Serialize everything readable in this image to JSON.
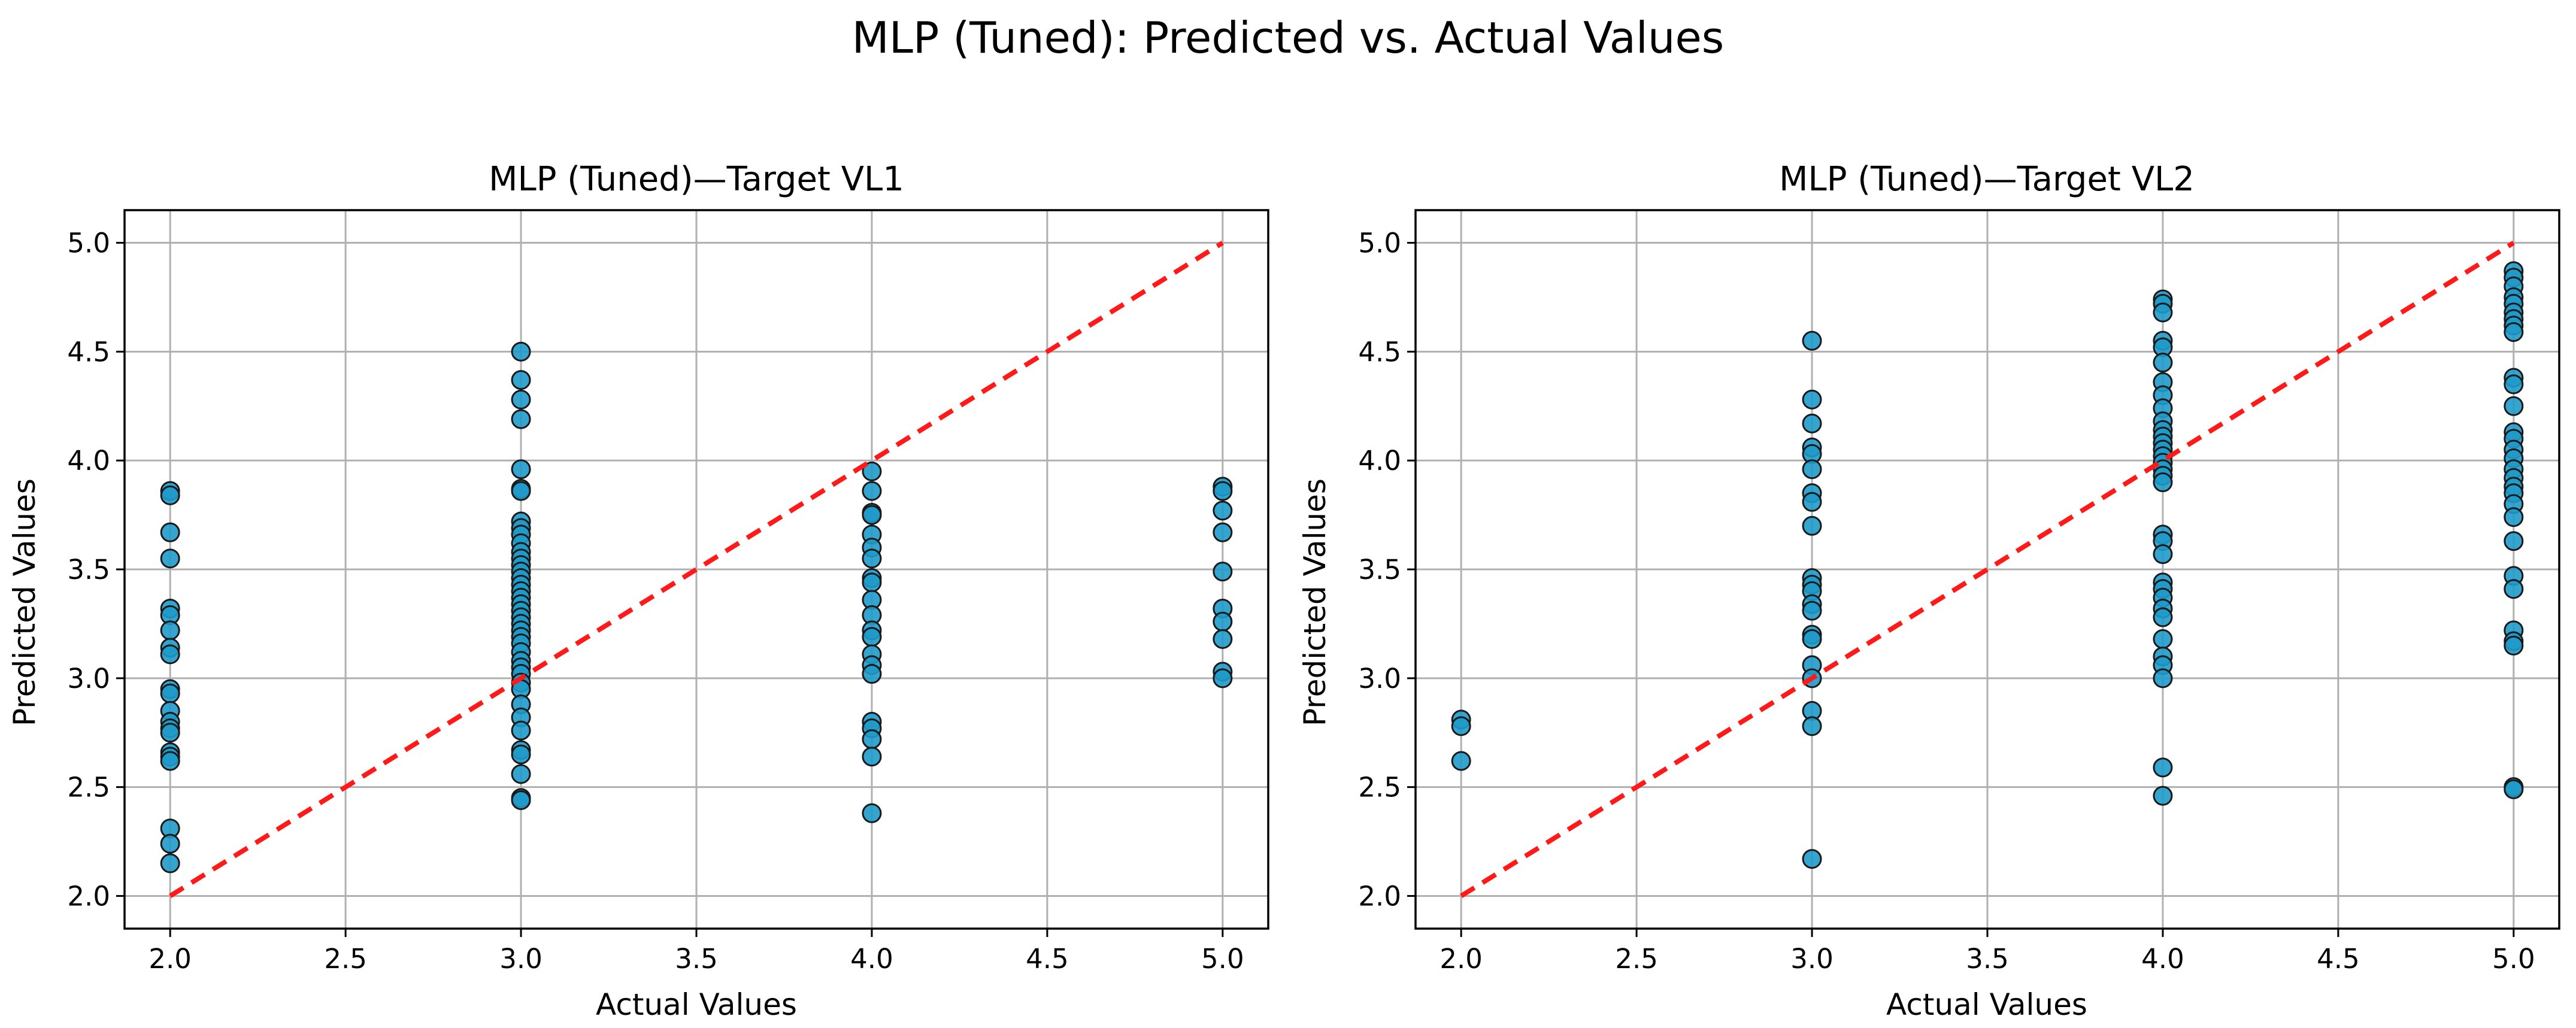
{
  "figure_title": "MLP (Tuned): Predicted vs. Actual Values",
  "colors": {
    "points": "#1f9ac9",
    "ideal_line": "#ff1a1a",
    "grid": "#b0b0b0"
  },
  "chart_data": [
    {
      "type": "scatter",
      "title": "MLP (Tuned)—Target VL1",
      "xlabel": "Actual Values",
      "ylabel": "Predicted Values",
      "xlim": [
        1.87,
        5.13
      ],
      "ylim": [
        1.85,
        5.15
      ],
      "xticks": [
        "2.0",
        "2.5",
        "3.0",
        "3.5",
        "4.0",
        "4.5",
        "5.0"
      ],
      "yticks": [
        "2.0",
        "2.5",
        "3.0",
        "3.5",
        "4.0",
        "4.5",
        "5.0"
      ],
      "grid": true,
      "ideal_line": {
        "from": [
          2.0,
          2.0
        ],
        "to": [
          5.0,
          5.0
        ],
        "style": "dashed"
      },
      "series": [
        {
          "x": 2.0,
          "y": [
            3.86,
            3.84,
            3.67,
            3.55,
            3.32,
            3.29,
            3.22,
            3.14,
            3.11,
            2.95,
            2.93,
            2.85,
            2.8,
            2.77,
            2.75,
            2.66,
            2.64,
            2.62,
            2.31,
            2.24,
            2.15
          ]
        },
        {
          "x": 3.0,
          "y": [
            4.5,
            4.37,
            4.28,
            4.19,
            3.96,
            3.87,
            3.86,
            3.72,
            3.69,
            3.66,
            3.62,
            3.58,
            3.55,
            3.52,
            3.49,
            3.46,
            3.43,
            3.4,
            3.37,
            3.34,
            3.31,
            3.28,
            3.25,
            3.22,
            3.19,
            3.16,
            3.12,
            3.08,
            3.05,
            3.02,
            2.98,
            2.95,
            2.88,
            2.82,
            2.76,
            2.67,
            2.65,
            2.56,
            2.45,
            2.44
          ]
        },
        {
          "x": 4.0,
          "y": [
            3.95,
            3.86,
            3.76,
            3.75,
            3.66,
            3.6,
            3.55,
            3.46,
            3.44,
            3.36,
            3.29,
            3.22,
            3.19,
            3.11,
            3.06,
            3.02,
            2.8,
            2.77,
            2.72,
            2.64,
            2.38
          ]
        },
        {
          "x": 5.0,
          "y": [
            3.88,
            3.86,
            3.77,
            3.67,
            3.49,
            3.32,
            3.26,
            3.18,
            3.03,
            3.0
          ]
        }
      ]
    },
    {
      "type": "scatter",
      "title": "MLP (Tuned)—Target VL2",
      "xlabel": "Actual Values",
      "ylabel": "Predicted Values",
      "xlim": [
        1.87,
        5.13
      ],
      "ylim": [
        1.85,
        5.15
      ],
      "xticks": [
        "2.0",
        "2.5",
        "3.0",
        "3.5",
        "4.0",
        "4.5",
        "5.0"
      ],
      "yticks": [
        "2.0",
        "2.5",
        "3.0",
        "3.5",
        "4.0",
        "4.5",
        "5.0"
      ],
      "grid": true,
      "ideal_line": {
        "from": [
          2.0,
          2.0
        ],
        "to": [
          5.0,
          5.0
        ],
        "style": "dashed"
      },
      "series": [
        {
          "x": 2.0,
          "y": [
            2.81,
            2.78,
            2.62
          ]
        },
        {
          "x": 3.0,
          "y": [
            4.55,
            4.28,
            4.17,
            4.06,
            4.03,
            3.96,
            3.85,
            3.81,
            3.7,
            3.46,
            3.43,
            3.4,
            3.34,
            3.31,
            3.2,
            3.18,
            3.06,
            3.0,
            2.85,
            2.78,
            2.17
          ]
        },
        {
          "x": 4.0,
          "y": [
            4.74,
            4.72,
            4.68,
            4.55,
            4.52,
            4.45,
            4.36,
            4.3,
            4.24,
            4.18,
            4.14,
            4.11,
            4.08,
            4.05,
            4.02,
            3.99,
            3.96,
            3.93,
            3.9,
            3.66,
            3.63,
            3.57,
            3.44,
            3.41,
            3.37,
            3.32,
            3.28,
            3.18,
            3.1,
            3.06,
            3.0,
            2.59,
            2.46
          ]
        },
        {
          "x": 5.0,
          "y": [
            4.87,
            4.84,
            4.8,
            4.75,
            4.72,
            4.68,
            4.65,
            4.62,
            4.59,
            4.38,
            4.35,
            4.25,
            4.13,
            4.1,
            4.05,
            4.01,
            3.96,
            3.92,
            3.88,
            3.85,
            3.8,
            3.74,
            3.63,
            3.47,
            3.41,
            3.22,
            3.17,
            3.15,
            2.5,
            2.49
          ]
        }
      ]
    }
  ]
}
